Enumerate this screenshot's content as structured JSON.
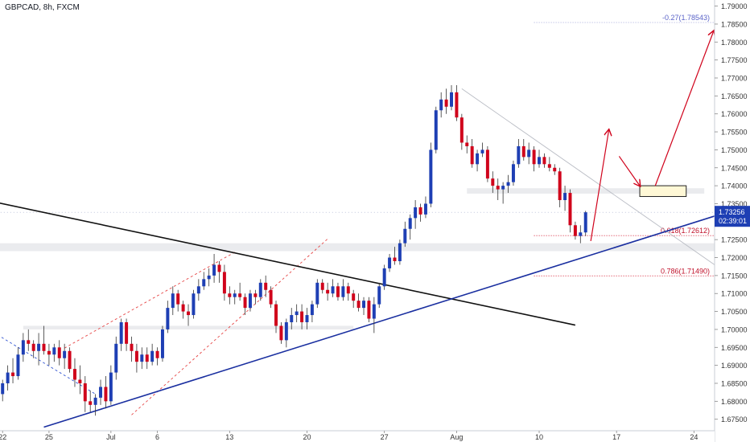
{
  "header": {
    "title": "GBPCAD, 8h, FXCM"
  },
  "price_scale": {
    "current_price": "1.73256",
    "countdown": "02:39:01"
  },
  "chart_data": {
    "type": "candlestick",
    "title": "GBPCAD, 8h, FXCM",
    "xlabel": "",
    "ylabel": "",
    "ylim": [
      1.6718,
      1.7917
    ],
    "grid": false,
    "y_ticks": [
      "1.79000",
      "1.78500",
      "1.78000",
      "1.77500",
      "1.77000",
      "1.76500",
      "1.76000",
      "1.75500",
      "1.75000",
      "1.74500",
      "1.74000",
      "1.73500",
      "1.73000",
      "1.72500",
      "1.72000",
      "1.71500",
      "1.71000",
      "1.70500",
      "1.70000",
      "1.69500",
      "1.69000",
      "1.68500",
      "1.68000",
      "1.67500"
    ],
    "x_ticks": [
      {
        "label": "22",
        "bar": 0
      },
      {
        "label": "25",
        "bar": 9
      },
      {
        "label": "Jul",
        "bar": 21
      },
      {
        "label": "6",
        "bar": 30
      },
      {
        "label": "13",
        "bar": 44
      },
      {
        "label": "20",
        "bar": 59
      },
      {
        "label": "27",
        "bar": 74
      },
      {
        "label": "Aug",
        "bar": 88
      },
      {
        "label": "10",
        "bar": 104
      },
      {
        "label": "17",
        "bar": 119
      },
      {
        "label": "24",
        "bar": 134
      }
    ],
    "x_range": [
      -0.5,
      138
    ],
    "candles": [
      [
        1.682,
        1.686,
        1.68,
        1.685
      ],
      [
        1.685,
        1.69,
        1.683,
        1.688
      ],
      [
        1.688,
        1.692,
        1.685,
        1.687
      ],
      [
        1.687,
        1.695,
        1.686,
        1.693
      ],
      [
        1.693,
        1.699,
        1.691,
        1.697
      ],
      [
        1.697,
        1.7,
        1.694,
        1.696
      ],
      [
        1.696,
        1.697,
        1.692,
        1.694
      ],
      [
        1.694,
        1.699,
        1.69,
        1.696
      ],
      [
        1.696,
        1.701,
        1.693,
        1.694
      ],
      [
        1.694,
        1.696,
        1.69,
        1.693
      ],
      [
        1.693,
        1.696,
        1.691,
        1.695
      ],
      [
        1.695,
        1.697,
        1.69,
        1.692
      ],
      [
        1.692,
        1.696,
        1.689,
        1.694
      ],
      [
        1.694,
        1.695,
        1.688,
        1.689
      ],
      [
        1.689,
        1.692,
        1.684,
        1.686
      ],
      [
        1.686,
        1.69,
        1.682,
        1.685
      ],
      [
        1.685,
        1.687,
        1.677,
        1.68
      ],
      [
        1.68,
        1.683,
        1.677,
        1.679
      ],
      [
        1.679,
        1.682,
        1.676,
        1.681
      ],
      [
        1.681,
        1.686,
        1.679,
        1.684
      ],
      [
        1.684,
        1.687,
        1.678,
        1.68
      ],
      [
        1.68,
        1.69,
        1.679,
        1.688
      ],
      [
        1.688,
        1.698,
        1.686,
        1.696
      ],
      [
        1.696,
        1.703,
        1.694,
        1.702
      ],
      [
        1.702,
        1.703,
        1.694,
        1.696
      ],
      [
        1.696,
        1.698,
        1.691,
        1.694
      ],
      [
        1.694,
        1.696,
        1.688,
        1.691
      ],
      [
        1.691,
        1.695,
        1.689,
        1.693
      ],
      [
        1.693,
        1.695,
        1.689,
        1.691
      ],
      [
        1.691,
        1.696,
        1.69,
        1.694
      ],
      [
        1.694,
        1.695,
        1.69,
        1.692
      ],
      [
        1.692,
        1.701,
        1.691,
        1.7
      ],
      [
        1.7,
        1.708,
        1.699,
        1.706
      ],
      [
        1.706,
        1.712,
        1.704,
        1.71
      ],
      [
        1.71,
        1.711,
        1.705,
        1.707
      ],
      [
        1.707,
        1.708,
        1.703,
        1.705
      ],
      [
        1.705,
        1.707,
        1.701,
        1.704
      ],
      [
        1.704,
        1.711,
        1.703,
        1.71
      ],
      [
        1.71,
        1.714,
        1.708,
        1.712
      ],
      [
        1.712,
        1.716,
        1.711,
        1.714
      ],
      [
        1.714,
        1.717,
        1.712,
        1.715
      ],
      [
        1.715,
        1.721,
        1.713,
        1.718
      ],
      [
        1.718,
        1.719,
        1.713,
        1.716
      ],
      [
        1.716,
        1.718,
        1.708,
        1.71
      ],
      [
        1.71,
        1.712,
        1.707,
        1.709
      ],
      [
        1.709,
        1.711,
        1.707,
        1.71
      ],
      [
        1.71,
        1.713,
        1.708,
        1.709
      ],
      [
        1.709,
        1.71,
        1.704,
        1.706
      ],
      [
        1.706,
        1.711,
        1.705,
        1.71
      ],
      [
        1.71,
        1.711,
        1.707,
        1.709
      ],
      [
        1.709,
        1.714,
        1.708,
        1.713
      ],
      [
        1.713,
        1.715,
        1.709,
        1.711
      ],
      [
        1.711,
        1.712,
        1.706,
        1.707
      ],
      [
        1.707,
        1.708,
        1.699,
        1.701
      ],
      [
        1.701,
        1.702,
        1.696,
        1.697
      ],
      [
        1.697,
        1.703,
        1.695,
        1.702
      ],
      [
        1.702,
        1.706,
        1.7,
        1.704
      ],
      [
        1.704,
        1.707,
        1.702,
        1.705
      ],
      [
        1.705,
        1.707,
        1.7,
        1.702
      ],
      [
        1.702,
        1.706,
        1.7,
        1.704
      ],
      [
        1.704,
        1.708,
        1.702,
        1.707
      ],
      [
        1.707,
        1.714,
        1.706,
        1.713
      ],
      [
        1.713,
        1.714,
        1.71,
        1.711
      ],
      [
        1.711,
        1.713,
        1.708,
        1.71
      ],
      [
        1.71,
        1.714,
        1.709,
        1.712
      ],
      [
        1.712,
        1.713,
        1.708,
        1.709
      ],
      [
        1.709,
        1.714,
        1.708,
        1.712
      ],
      [
        1.712,
        1.713,
        1.708,
        1.71
      ],
      [
        1.71,
        1.711,
        1.706,
        1.708
      ],
      [
        1.708,
        1.71,
        1.705,
        1.706
      ],
      [
        1.706,
        1.709,
        1.704,
        1.708
      ],
      [
        1.708,
        1.709,
        1.702,
        1.703
      ],
      [
        1.703,
        1.709,
        1.699,
        1.707
      ],
      [
        1.707,
        1.713,
        1.706,
        1.712
      ],
      [
        1.712,
        1.718,
        1.711,
        1.717
      ],
      [
        1.717,
        1.721,
        1.716,
        1.72
      ],
      [
        1.72,
        1.723,
        1.718,
        1.719
      ],
      [
        1.719,
        1.725,
        1.718,
        1.724
      ],
      [
        1.724,
        1.73,
        1.723,
        1.728
      ],
      [
        1.728,
        1.732,
        1.725,
        1.731
      ],
      [
        1.731,
        1.736,
        1.728,
        1.734
      ],
      [
        1.734,
        1.735,
        1.73,
        1.732
      ],
      [
        1.732,
        1.737,
        1.731,
        1.735
      ],
      [
        1.735,
        1.752,
        1.734,
        1.75
      ],
      [
        1.75,
        1.762,
        1.749,
        1.761
      ],
      [
        1.761,
        1.766,
        1.759,
        1.764
      ],
      [
        1.764,
        1.767,
        1.76,
        1.762
      ],
      [
        1.762,
        1.768,
        1.761,
        1.766
      ],
      [
        1.766,
        1.768,
        1.758,
        1.759
      ],
      [
        1.759,
        1.76,
        1.75,
        1.752
      ],
      [
        1.752,
        1.754,
        1.749,
        1.751
      ],
      [
        1.751,
        1.753,
        1.745,
        1.746
      ],
      [
        1.746,
        1.75,
        1.744,
        1.749
      ],
      [
        1.749,
        1.752,
        1.748,
        1.75
      ],
      [
        1.75,
        1.751,
        1.741,
        1.742
      ],
      [
        1.742,
        1.744,
        1.738,
        1.74
      ],
      [
        1.74,
        1.742,
        1.736,
        1.739
      ],
      [
        1.739,
        1.741,
        1.735,
        1.74
      ],
      [
        1.74,
        1.743,
        1.738,
        1.741
      ],
      [
        1.741,
        1.747,
        1.74,
        1.746
      ],
      [
        1.746,
        1.753,
        1.745,
        1.751
      ],
      [
        1.751,
        1.753,
        1.747,
        1.748
      ],
      [
        1.748,
        1.752,
        1.746,
        1.75
      ],
      [
        1.75,
        1.751,
        1.744,
        1.746
      ],
      [
        1.746,
        1.75,
        1.745,
        1.748
      ],
      [
        1.748,
        1.749,
        1.745,
        1.746
      ],
      [
        1.746,
        1.748,
        1.744,
        1.745
      ],
      [
        1.745,
        1.746,
        1.743,
        1.744
      ],
      [
        1.744,
        1.745,
        1.734,
        1.736
      ],
      [
        1.736,
        1.74,
        1.733,
        1.738
      ],
      [
        1.738,
        1.739,
        1.727,
        1.729
      ],
      [
        1.729,
        1.73,
        1.725,
        1.726
      ],
      [
        1.726,
        1.729,
        1.724,
        1.727
      ],
      [
        1.727,
        1.733,
        1.726,
        1.7326
      ]
    ],
    "annotations": {
      "fib_levels": [
        {
          "label": "-0.27(1.78543)",
          "price": 1.78543,
          "from_bar": 103,
          "to_bar": 140
        },
        {
          "label": "0.618(1.72612)",
          "price": 1.72612,
          "from_bar": 103,
          "to_bar": 140
        },
        {
          "label": "0.786(1.71490)",
          "price": 1.7149,
          "from_bar": 103,
          "to_bar": 140
        }
      ],
      "zones": [
        {
          "from_bar": 4,
          "to_bar": 68,
          "low": 1.7,
          "high": 1.701
        },
        {
          "from_bar": -1,
          "to_bar": 140,
          "low": 1.7218,
          "high": 1.724
        },
        {
          "from_bar": 90,
          "to_bar": 136,
          "low": 1.7378,
          "high": 1.7393
        }
      ],
      "target_box": {
        "from_bar": 123.5,
        "to_bar": 132.5,
        "low": 1.737,
        "high": 1.74
      }
    }
  },
  "colors": {
    "up": "#1e3fb4",
    "down": "#d0021b",
    "support_line": "#1a2fa0",
    "trendline": "#111111",
    "fib_line": "#d0021b",
    "fib_ext_line": "#8a8fd0",
    "channel": "#e64545",
    "arrow": "#d0021b",
    "current_price_bg": "#1e3fb4"
  }
}
